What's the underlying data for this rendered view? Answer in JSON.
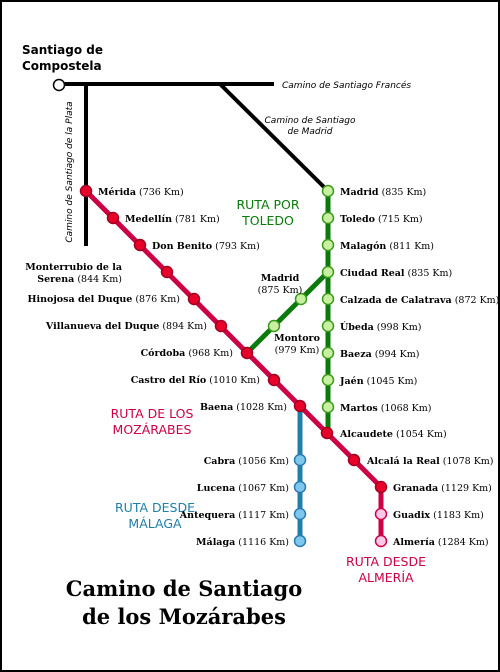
{
  "title": [
    "Camino de Santiago",
    "de los Mozárabes"
  ],
  "origin": [
    "Santiago de",
    "Compostela"
  ],
  "caminos": {
    "frances": "Camino de Santiago Francés",
    "madrid": [
      "Camino de Santiago",
      "de Madrid"
    ],
    "plata": "Camino de Santiago de la Plata"
  },
  "routes": [
    {
      "id": "toledo",
      "label": [
        "RUTA POR",
        "TOLEDO"
      ],
      "color": "#0a7a0a"
    },
    {
      "id": "mozarabes",
      "label": [
        "RUTA DE LOS",
        "MOZÁRABES"
      ],
      "color": "#cc0044"
    },
    {
      "id": "malaga",
      "label": [
        "RUTA DESDE",
        "MÁLAGA"
      ],
      "color": "#1f7fa8"
    },
    {
      "id": "almeria",
      "label": [
        "RUTA DESDE",
        "ALMERÍA"
      ],
      "color": "#cc0044"
    }
  ],
  "stops": {
    "toledo": [
      {
        "name": "Madrid",
        "km": "(835 Km)"
      },
      {
        "name": "Toledo",
        "km": "(715 Km)"
      },
      {
        "name": "Malagón",
        "km": "(811 Km)"
      },
      {
        "name": "Ciudad Real",
        "km": "(835 Km)"
      },
      {
        "name": "Calzada de Calatrava",
        "km": "(872 Km)"
      },
      {
        "name": "Úbeda",
        "km": "(998 Km)"
      },
      {
        "name": "Baeza",
        "km": "(994 Km)"
      },
      {
        "name": "Jaén",
        "km": "(1045 Km)"
      },
      {
        "name": "Martos",
        "km": "(1068 Km)"
      }
    ],
    "branch_madrid": [
      {
        "name": "Madrid",
        "km": "(875 Km)"
      },
      {
        "name": "Montoro",
        "km": "(979 Km)"
      }
    ],
    "mozarabes": [
      {
        "name": "Mérida",
        "km": "(736 Km)"
      },
      {
        "name": "Medellín",
        "km": "(781 Km)"
      },
      {
        "name": "Don Benito",
        "km": "(793 Km)"
      },
      {
        "name": "Monterrubio de la Serena",
        "km": "(844 Km)"
      },
      {
        "name": "Hinojosa del Duque",
        "km": "(876 Km)"
      },
      {
        "name": "Villanueva del Duque",
        "km": "(894 Km)"
      },
      {
        "name": "Córdoba",
        "km": "(968 Km)"
      },
      {
        "name": "Castro del Río",
        "km": "(1010 Km)"
      },
      {
        "name": "Baena",
        "km": "(1028 Km)"
      },
      {
        "name": "Alcaudete",
        "km": "(1054 Km)"
      },
      {
        "name": "Alcalá la Real",
        "km": "(1078 Km)"
      },
      {
        "name": "Granada",
        "km": "(1129 Km)"
      }
    ],
    "malaga": [
      {
        "name": "Cabra",
        "km": "(1056 Km)"
      },
      {
        "name": "Lucena",
        "km": "(1067 Km)"
      },
      {
        "name": "Antequera",
        "km": "(1117 Km)"
      },
      {
        "name": "Málaga",
        "km": "(1116 Km)"
      }
    ],
    "almeria": [
      {
        "name": "Guadix",
        "km": "(1183 Km)"
      },
      {
        "name": "Almería",
        "km": "(1284 Km)"
      }
    ]
  }
}
